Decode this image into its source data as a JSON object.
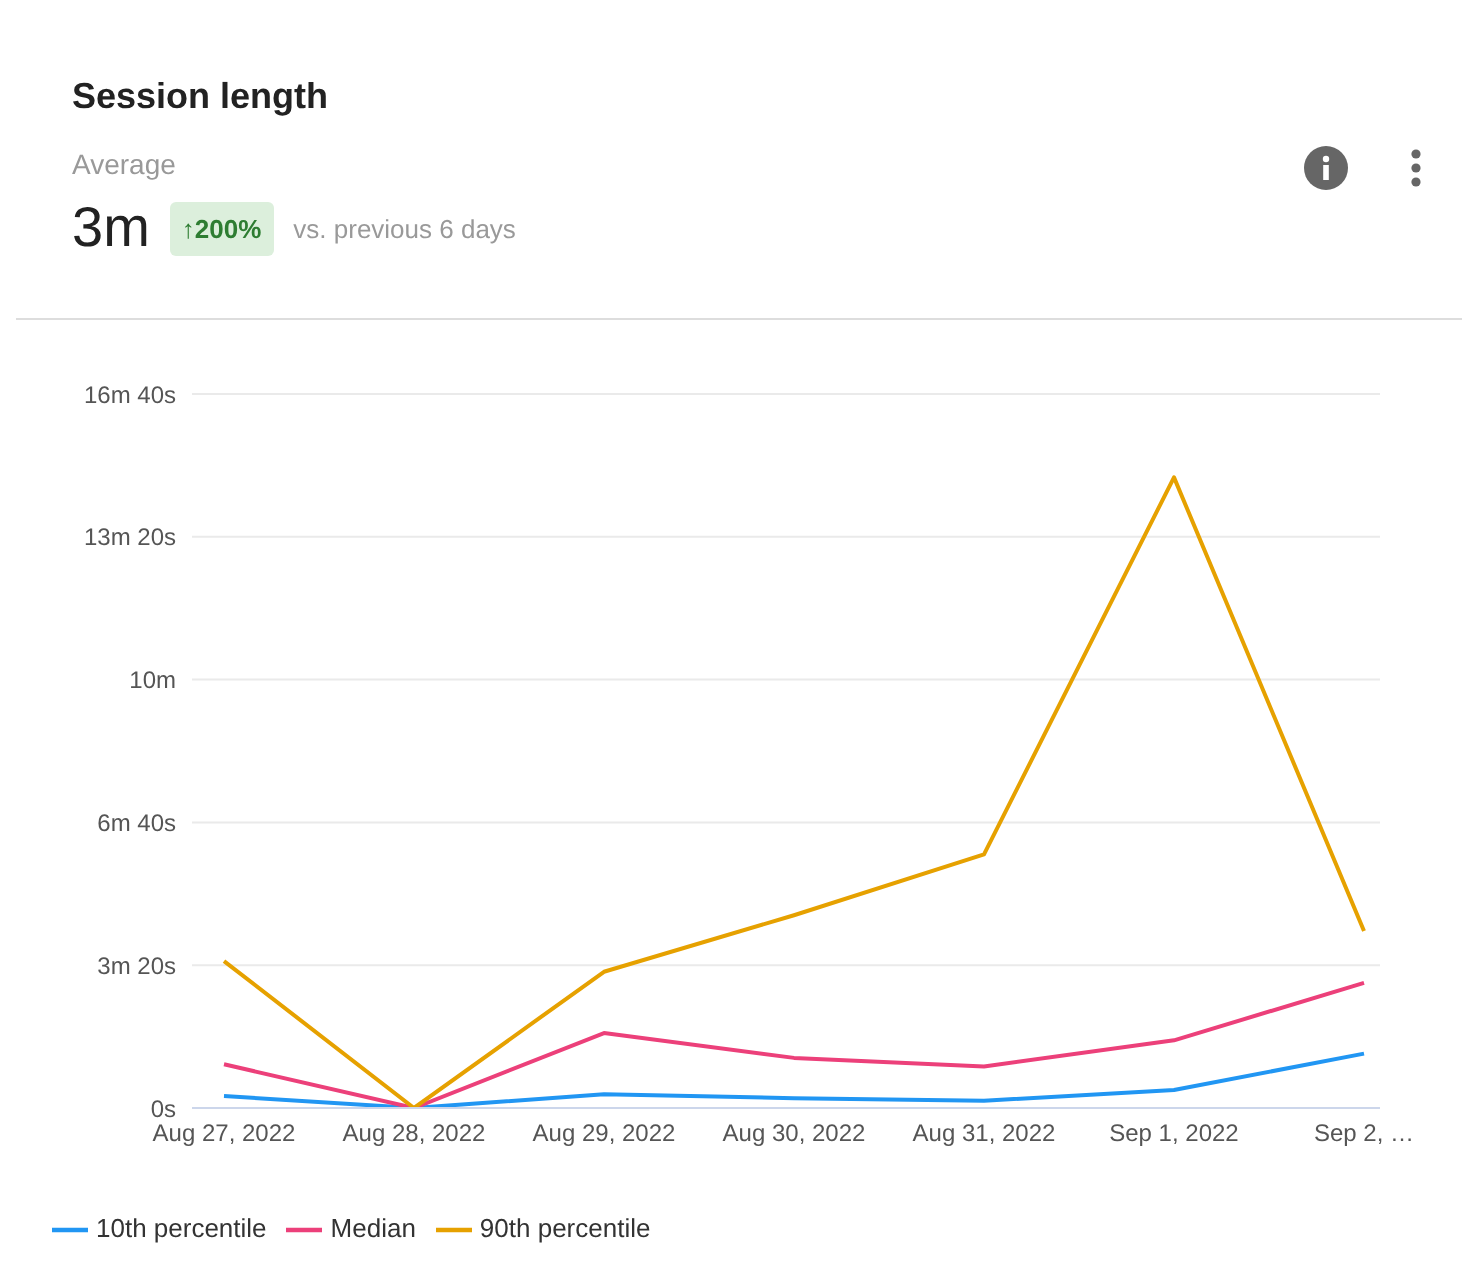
{
  "chart_data": {
    "type": "line",
    "title": "Session length",
    "subtitle": "Average",
    "annotations": [
      "3m",
      "↑200%",
      "vs. previous 6 days"
    ],
    "categories": [
      "Aug 27, 2022",
      "Aug 28, 2022",
      "Aug 29, 2022",
      "Aug 30, 2022",
      "Aug 31, 2022",
      "Sep 1, 2022",
      "Sep 2, …"
    ],
    "series": [
      {
        "name": "10th percentile",
        "color": "#2196f3",
        "values": [
          0.28,
          0,
          0.32,
          0.23,
          0.17,
          0.42,
          1.27
        ]
      },
      {
        "name": "Median",
        "color": "#ec407a",
        "values": [
          1.02,
          0,
          1.75,
          1.17,
          0.97,
          1.58,
          2.92
        ]
      },
      {
        "name": "90th percentile",
        "color": "#e6a100",
        "values": [
          3.43,
          0,
          3.18,
          4.5,
          5.92,
          14.72,
          4.13
        ]
      }
    ],
    "ylim": [
      0,
      16.6667
    ],
    "yticks": [
      {
        "value": 0,
        "label": "0s"
      },
      {
        "value": 3.3333,
        "label": "3m 20s"
      },
      {
        "value": 6.6667,
        "label": "6m 40s"
      },
      {
        "value": 10,
        "label": "10m"
      },
      {
        "value": 13.3333,
        "label": "13m 20s"
      },
      {
        "value": 16.6667,
        "label": "16m 40s"
      }
    ],
    "grid": "y",
    "legend": "bottom",
    "marker": "none",
    "line_style": "solid"
  }
}
